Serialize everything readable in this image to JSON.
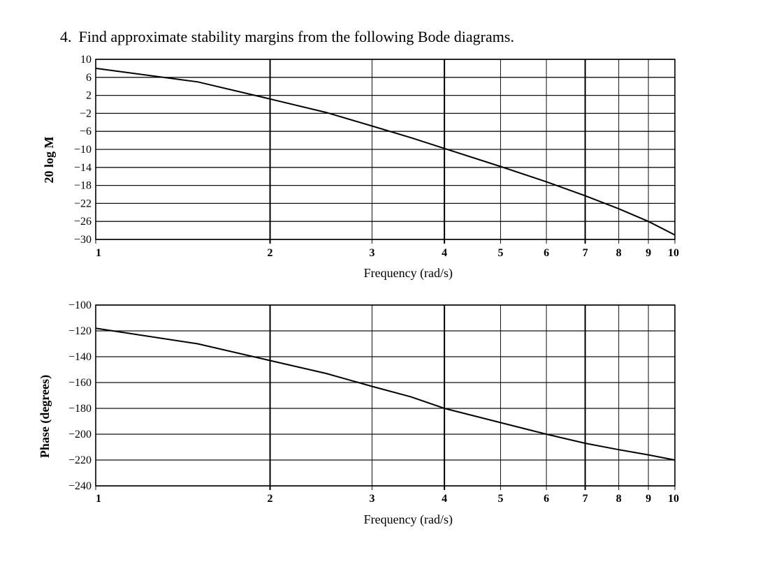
{
  "question": {
    "number": "4.",
    "text": "Find approximate stability margins from the following Bode diagrams."
  },
  "chart_data": [
    {
      "type": "line",
      "title": "",
      "xlabel": "Frequency (rad/s)",
      "ylabel": "20 log M",
      "x_scale": "log",
      "xlim": [
        1,
        10
      ],
      "ylim": [
        -30,
        10
      ],
      "x_ticks": [
        "1",
        "2",
        "3",
        "4",
        "5",
        "6",
        "7",
        "8",
        "9",
        "10"
      ],
      "y_ticks": [
        "10",
        "6",
        "2",
        "−2",
        "−6",
        "−10",
        "−14",
        "−18",
        "−22",
        "−26",
        "−30"
      ],
      "grid": true,
      "series": [
        {
          "x": [
            1,
            1.5,
            2,
            2.5,
            3,
            3.5,
            4,
            5,
            6,
            7,
            8,
            9,
            10
          ],
          "y": [
            8,
            5,
            1.2,
            -1.8,
            -4.8,
            -7.4,
            -9.8,
            -13.8,
            -17.2,
            -20.3,
            -23.2,
            -26,
            -29
          ]
        }
      ]
    },
    {
      "type": "line",
      "title": "",
      "xlabel": "Frequency (rad/s)",
      "ylabel": "Phase (degrees)",
      "x_scale": "log",
      "xlim": [
        1,
        10
      ],
      "ylim": [
        -240,
        -100
      ],
      "x_ticks": [
        "1",
        "2",
        "3",
        "4",
        "5",
        "6",
        "7",
        "8",
        "9",
        "10"
      ],
      "y_ticks": [
        "−100",
        "−120",
        "−140",
        "−160",
        "−180",
        "−200",
        "−220",
        "−240"
      ],
      "grid": true,
      "series": [
        {
          "x": [
            1,
            1.5,
            2,
            2.5,
            3,
            3.5,
            4,
            5,
            6,
            7,
            8,
            9,
            10
          ],
          "y": [
            -118,
            -130,
            -143,
            -153,
            -163,
            -171,
            -180,
            -191,
            -200,
            -207,
            -212,
            -216,
            -220
          ]
        }
      ]
    }
  ]
}
